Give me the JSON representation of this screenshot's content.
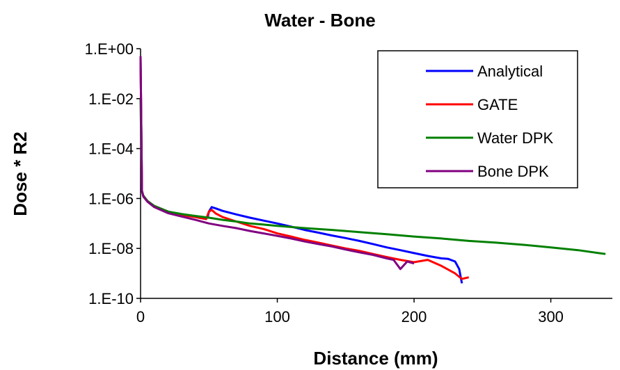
{
  "chart_data": {
    "type": "line",
    "title": "Water - Bone",
    "xlabel": "Distance (mm)",
    "ylabel": "Dose * R2",
    "x_ticks": [
      0,
      100,
      200,
      300
    ],
    "x_tick_labels": [
      "0",
      "100",
      "200",
      "300"
    ],
    "xlim": [
      0,
      345
    ],
    "y_scale": "log",
    "y_ticks": [
      1e-10,
      1e-08,
      1e-06,
      0.0001,
      0.01,
      1
    ],
    "y_tick_labels": [
      "1.E-10",
      "1.E-08",
      "1.E-06",
      "1.E-04",
      "1.E-02",
      "1.E+00"
    ],
    "ylim": [
      1e-10,
      1
    ],
    "grid": false,
    "legend_position": "top-right",
    "series": [
      {
        "name": "Analytical",
        "color": "#0000ff",
        "x": [
          0,
          0.5,
          1,
          2,
          5,
          10,
          20,
          30,
          40,
          49,
          50,
          52,
          55,
          60,
          70,
          80,
          90,
          100,
          110,
          120,
          130,
          140,
          150,
          160,
          170,
          180,
          190,
          200,
          210,
          220,
          225,
          230,
          233,
          235
        ],
        "y": [
          0.4,
          0.001,
          2e-06,
          1.3e-06,
          8e-07,
          5e-07,
          3e-07,
          2.3e-07,
          1.9e-07,
          1.7e-07,
          3e-07,
          4.5e-07,
          4e-07,
          3.2e-07,
          2.3e-07,
          1.7e-07,
          1.3e-07,
          1e-07,
          7.5e-08,
          5.5e-08,
          4.3e-08,
          3.3e-08,
          2.6e-08,
          2e-08,
          1.5e-08,
          1.1e-08,
          8.5e-09,
          6.5e-09,
          5e-09,
          4e-09,
          3.8e-09,
          3e-09,
          1.5e-09,
          4e-10
        ]
      },
      {
        "name": "GATE",
        "color": "#ff0000",
        "x": [
          0,
          0.5,
          1,
          2,
          5,
          10,
          20,
          30,
          40,
          48,
          50,
          52,
          55,
          60,
          70,
          80,
          90,
          100,
          110,
          120,
          130,
          140,
          150,
          160,
          170,
          180,
          190,
          200,
          210,
          220,
          230,
          235,
          240
        ],
        "y": [
          0.4,
          0.001,
          2e-06,
          1.3e-06,
          8e-07,
          5e-07,
          3e-07,
          2.2e-07,
          1.8e-07,
          1.5e-07,
          3e-07,
          3.5e-07,
          2.5e-07,
          1.8e-07,
          1.2e-07,
          8e-08,
          6e-08,
          4e-08,
          3e-08,
          2.2e-08,
          1.7e-08,
          1.3e-08,
          1e-08,
          8e-09,
          6e-09,
          4.5e-09,
          3.5e-09,
          2.8e-09,
          3.5e-09,
          2e-09,
          1e-09,
          6e-10,
          7e-10
        ]
      },
      {
        "name": "Water DPK",
        "color": "#008000",
        "x": [
          0,
          0.5,
          1,
          2,
          5,
          10,
          20,
          30,
          40,
          50,
          60,
          70,
          80,
          90,
          100,
          120,
          140,
          160,
          180,
          200,
          220,
          240,
          260,
          280,
          300,
          320,
          335,
          340
        ],
        "y": [
          0.01,
          0.0001,
          2e-06,
          1.3e-06,
          8e-07,
          5e-07,
          3e-07,
          2.4e-07,
          2e-07,
          1.7e-07,
          1.4e-07,
          1.2e-07,
          1e-07,
          9e-08,
          8e-08,
          6.5e-08,
          5.5e-08,
          4.5e-08,
          3.7e-08,
          3e-08,
          2.5e-08,
          2e-08,
          1.7e-08,
          1.4e-08,
          1.1e-08,
          8.5e-09,
          6.5e-09,
          6e-09
        ]
      },
      {
        "name": "Bone DPK",
        "color": "#800080",
        "x": [
          0,
          0.5,
          1,
          2,
          5,
          10,
          20,
          30,
          40,
          50,
          60,
          70,
          80,
          90,
          100,
          110,
          120,
          130,
          140,
          150,
          160,
          170,
          180,
          185,
          190,
          195,
          200
        ],
        "y": [
          0.5,
          0.001,
          2e-06,
          1.2e-06,
          7.5e-07,
          4.5e-07,
          2.6e-07,
          1.9e-07,
          1.4e-07,
          1e-07,
          8e-08,
          6.5e-08,
          5e-08,
          4e-08,
          3.2e-08,
          2.5e-08,
          1.9e-08,
          1.5e-08,
          1.2e-08,
          9e-09,
          7e-09,
          5.5e-09,
          4e-09,
          3.5e-09,
          1.5e-09,
          3e-09,
          2.5e-09
        ]
      }
    ]
  }
}
